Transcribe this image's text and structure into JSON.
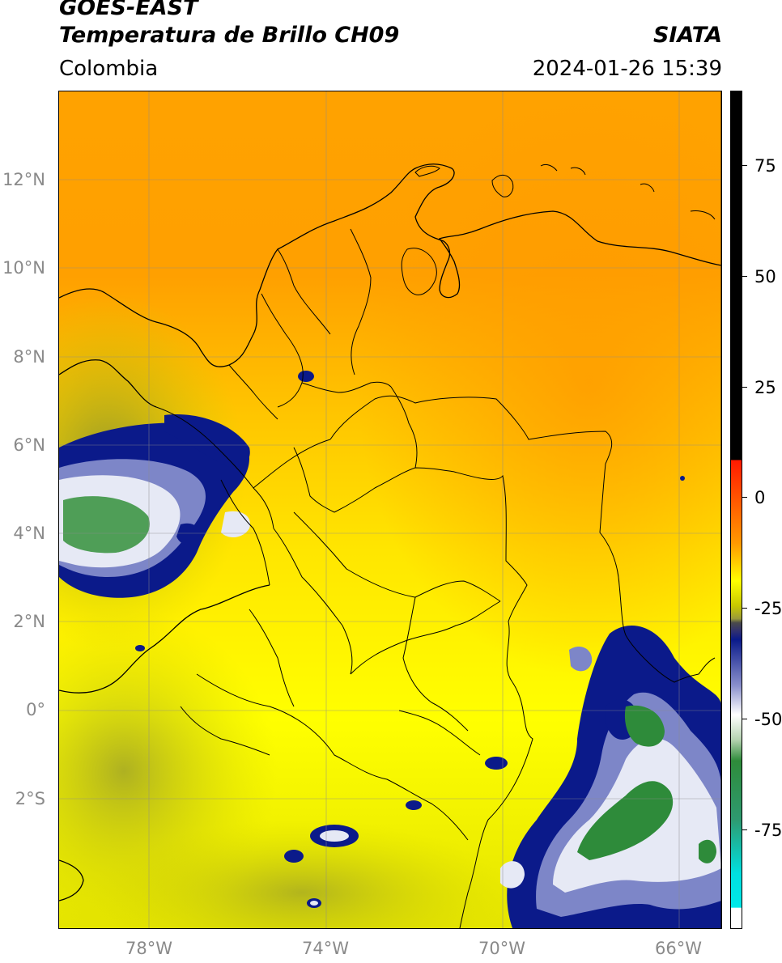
{
  "header": {
    "satellite": "GOES-EAST",
    "product": "Temperatura de Brillo CH09",
    "organization": "SIATA",
    "region": "Colombia",
    "timestamp": "2024-01-26 15:39"
  },
  "map": {
    "latitude_labels": [
      "12°N",
      "10°N",
      "8°N",
      "6°N",
      "4°N",
      "2°N",
      "0°",
      "2°S"
    ],
    "longitude_labels": [
      "78°W",
      "74°W",
      "70°W",
      "66°W"
    ]
  },
  "colorbar": {
    "tick_labels": [
      "75",
      "50",
      "25",
      "0",
      "-25",
      "-50",
      "-75"
    ],
    "colors": {
      "hot_black": "#000000",
      "red": "#ff1a00",
      "orange": "#ff9900",
      "yellow": "#ffff00",
      "olive": "#9a9a3a",
      "navy": "#0a1a8a",
      "white": "#ffffff",
      "green": "#2e8b3a",
      "cyan": "#00e0e0"
    }
  }
}
